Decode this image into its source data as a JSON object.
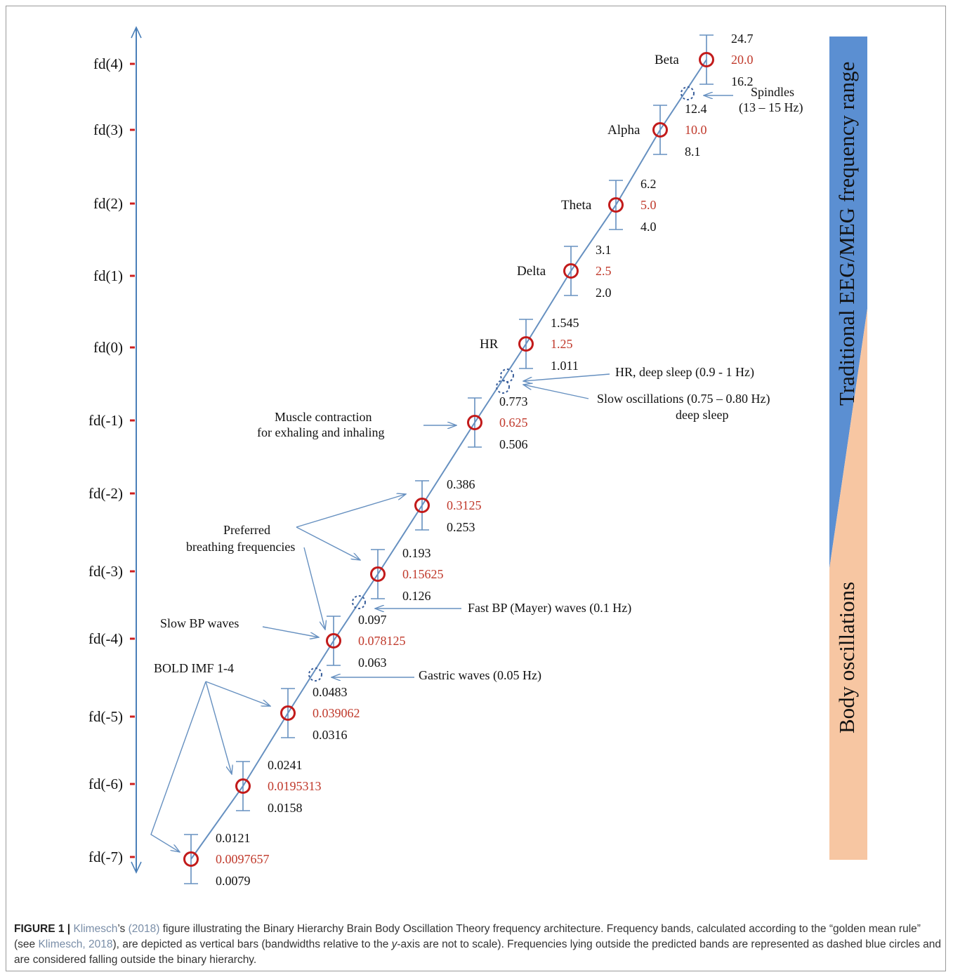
{
  "colors": {
    "axis": "#4a7fb8",
    "tick": "#cc2020",
    "center": "#c21b1b",
    "ring": "#c21b1b",
    "bar": "#6690c0",
    "dashed": "#3a5e9a",
    "text": "#111111",
    "red_text": "#c0392b",
    "eeg_band": "#5b8fd2",
    "body_band": "#f7c6a2"
  },
  "levels": [
    {
      "id": "fd4",
      "label": "fd(4)",
      "band": "Beta",
      "upper": "24.7",
      "center": "20.0",
      "lower": "16.2"
    },
    {
      "id": "fd3",
      "label": "fd(3)",
      "band": "Alpha",
      "upper": "12.4",
      "center": "10.0",
      "lower": "8.1"
    },
    {
      "id": "fd2",
      "label": "fd(2)",
      "band": "Theta",
      "upper": "6.2",
      "center": "5.0",
      "lower": "4.0"
    },
    {
      "id": "fd1",
      "label": "fd(1)",
      "band": "Delta",
      "upper": "3.1",
      "center": "2.5",
      "lower": "2.0"
    },
    {
      "id": "fd0",
      "label": "fd(0)",
      "band": "HR",
      "upper": "1.545",
      "center": "1.25",
      "lower": "1.011"
    },
    {
      "id": "fdm1",
      "label": "fd(-1)",
      "band": "",
      "upper": "0.773",
      "center": "0.625",
      "lower": "0.506"
    },
    {
      "id": "fdm2",
      "label": "fd(-2)",
      "band": "",
      "upper": "0.386",
      "center": "0.3125",
      "lower": "0.253"
    },
    {
      "id": "fdm3",
      "label": "fd(-3)",
      "band": "",
      "upper": "0.193",
      "center": "0.15625",
      "lower": "0.126"
    },
    {
      "id": "fdm4",
      "label": "fd(-4)",
      "band": "",
      "upper": "0.097",
      "center": "0.078125",
      "lower": "0.063"
    },
    {
      "id": "fdm5",
      "label": "fd(-5)",
      "band": "",
      "upper": "0.0483",
      "center": "0.039062",
      "lower": "0.0316"
    },
    {
      "id": "fdm6",
      "label": "fd(-6)",
      "band": "",
      "upper": "0.0241",
      "center": "0.0195313",
      "lower": "0.0158"
    },
    {
      "id": "fdm7",
      "label": "fd(-7)",
      "band": "",
      "upper": "0.0121",
      "center": "0.0097657",
      "lower": "0.0079"
    }
  ],
  "annotations": {
    "spindles_1": "Spindles",
    "spindles_2": "(13 – 15 Hz)",
    "hr_deep_sleep": "HR, deep sleep (0.9 - 1 Hz)",
    "slow_osc_1": "Slow oscillations (0.75 – 0.80 Hz)",
    "slow_osc_2": "deep sleep",
    "muscle_1": "Muscle contraction",
    "muscle_2": "for exhaling and inhaling",
    "breathing_1": "Preferred",
    "breathing_2": "breathing frequencies",
    "fast_bp": "Fast BP (Mayer) waves (0.1 Hz)",
    "slow_bp": "Slow BP waves",
    "bold": "BOLD IMF 1-4",
    "gastric": "Gastric waves (0.05 Hz)"
  },
  "side_labels": {
    "eeg": "Traditional EEG/MEG frequency range",
    "body": "Body oscillations"
  },
  "caption": {
    "fig": "FIGURE 1 |",
    "author": "Klimesch",
    "s1": "’s ",
    "year": "(2018)",
    "s2": " figure illustrating the Binary Hierarchy Brain Body Oscillation Theory frequency architecture. Frequency bands, calculated according to the “golden mean rule” (see ",
    "ref": "Klimesch, 2018",
    "s3": "), are depicted as vertical bars (bandwidths relative to the ",
    "y": "y",
    "s4": "-axis are not to scale). Frequencies lying outside the predicted bands are represented as dashed blue circles and are considered falling outside the binary hierarchy."
  }
}
